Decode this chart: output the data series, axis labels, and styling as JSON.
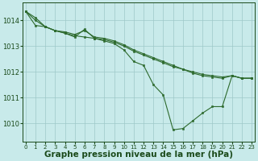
{
  "series": [
    {
      "x": [
        0,
        1,
        2,
        3,
        4,
        5,
        6,
        7,
        8,
        9,
        10,
        11,
        12,
        13,
        14,
        15,
        16,
        17,
        18,
        19,
        20,
        21,
        22,
        23
      ],
      "y": [
        1014.35,
        1013.8,
        1013.75,
        1013.6,
        1013.55,
        1013.45,
        1013.6,
        1013.35,
        1013.3,
        1013.2,
        1013.05,
        1012.85,
        1012.7,
        1012.55,
        1012.4,
        1012.25,
        1012.1,
        1012.0,
        1011.9,
        1011.85,
        1011.8,
        1011.85,
        1011.75,
        1011.75
      ]
    },
    {
      "x": [
        0,
        1,
        2,
        3,
        4,
        5,
        6,
        7,
        8,
        9,
        10,
        11,
        12,
        13,
        14,
        15,
        16,
        17,
        18,
        19,
        20,
        21,
        22,
        23
      ],
      "y": [
        1014.35,
        1014.0,
        1013.75,
        1013.6,
        1013.5,
        1013.4,
        1013.35,
        1013.3,
        1013.25,
        1013.15,
        1013.0,
        1012.8,
        1012.65,
        1012.5,
        1012.35,
        1012.2,
        1012.1,
        1011.95,
        1011.85,
        1011.8,
        1011.75,
        1011.85,
        1011.75,
        1011.75
      ]
    },
    {
      "x": [
        0,
        1,
        2,
        3,
        4,
        5,
        6,
        7,
        8,
        9,
        10,
        11,
        12,
        13,
        14,
        15,
        16,
        17,
        18,
        19,
        20,
        21,
        22,
        23
      ],
      "y": [
        1014.35,
        1014.1,
        1013.75,
        1013.6,
        1013.5,
        1013.35,
        1013.65,
        1013.3,
        1013.2,
        1013.1,
        1012.85,
        1012.4,
        1012.25,
        1011.5,
        1011.1,
        1009.75,
        1009.8,
        1010.1,
        1010.4,
        1010.65,
        1010.65,
        1011.85,
        1011.75,
        1011.75
      ]
    }
  ],
  "line_color": "#2d6a2d",
  "marker_color": "#2d6a2d",
  "bg_color": "#c8eaea",
  "grid_color": "#9ec8c8",
  "axis_label_color": "#1a4a1a",
  "xlabel": "Graphe pression niveau de la mer (hPa)",
  "xlabel_fontsize": 7.5,
  "xticks": [
    0,
    1,
    2,
    3,
    4,
    5,
    6,
    7,
    8,
    9,
    10,
    11,
    12,
    13,
    14,
    15,
    16,
    17,
    18,
    19,
    20,
    21,
    22,
    23
  ],
  "yticks": [
    1010,
    1011,
    1012,
    1013,
    1014
  ],
  "ylim": [
    1009.3,
    1014.7
  ],
  "xlim": [
    -0.3,
    23.3
  ]
}
